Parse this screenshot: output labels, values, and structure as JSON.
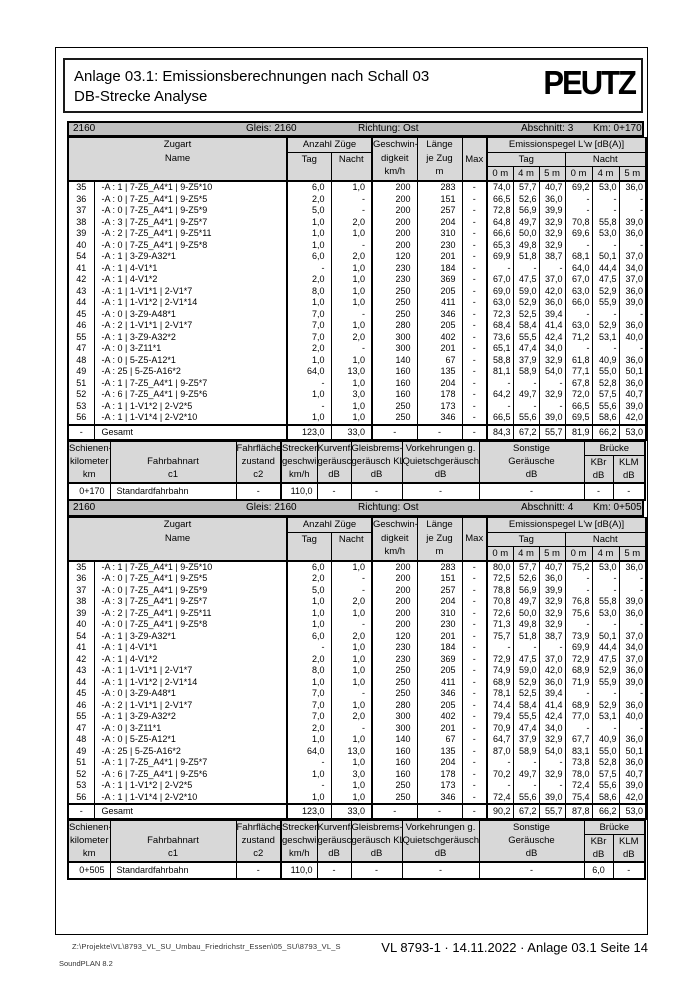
{
  "colors": {
    "bar_bg": "#c0c0c0",
    "header_cell_bg": "#d8d8d8"
  },
  "header": {
    "title_line1": "Anlage 03.1: Emissionsberechnungen nach Schall 03",
    "title_line2": "DB-Strecke Analyse",
    "logo": "PEUTZ"
  },
  "main_header": {
    "zugart": "Zugart",
    "name": "Name",
    "anzahl": "Anzahl Züge",
    "tag": "Tag",
    "nacht": "Nacht",
    "geschw": [
      "Geschwin-",
      "digkeit",
      "km/h"
    ],
    "laenge": [
      "Länge",
      "je Zug",
      "m"
    ],
    "max": "Max",
    "emis": "Emissionspegel L'w [dB(A)]",
    "tag2": "Tag",
    "nacht2": "Nacht",
    "m": [
      "0 m",
      "4 m",
      "5 m",
      "0 m",
      "4 m",
      "5 m"
    ]
  },
  "sub_header": {
    "km": [
      "Schienen-",
      "kilometer",
      "km"
    ],
    "fahrbahnart": [
      "",
      "Fahrbahnart",
      "c1"
    ],
    "zustand": [
      "Fahrflächen-",
      "zustand",
      "c2"
    ],
    "strecken": [
      "Strecken",
      "geschwin",
      "km/h"
    ],
    "kurven": [
      "Kurvenfah",
      "geräusch",
      "dB"
    ],
    "gleisbrems": [
      "Gleisbrems-",
      "geräusch KL",
      "dB"
    ],
    "vorkehrungen": [
      "Vorkehrungen g.",
      "Quietschgeräusche",
      "dB"
    ],
    "sonstige": [
      "Sonstige",
      "Geräusche",
      "dB"
    ],
    "bruecke": "Brücke",
    "kbr": [
      "KBr",
      "dB"
    ],
    "klm": [
      "KLM",
      "dB"
    ]
  },
  "sections": [
    {
      "bar": {
        "track": "2160",
        "gleis": "Gleis: 2160",
        "richtung": "Richtung: Ost",
        "abschnitt": "Abschnitt: 3",
        "km": "Km: 0+170"
      },
      "rows": [
        [
          "35",
          "-A : 1 | 7-Z5_A4*1 | 9-Z5*10",
          "6,0",
          "1,0",
          "200",
          "283",
          "-",
          "74,0",
          "57,7",
          "40,7",
          "69,2",
          "53,0",
          "36,0"
        ],
        [
          "36",
          "-A : 0 | 7-Z5_A4*1 | 9-Z5*5",
          "2,0",
          "-",
          "200",
          "151",
          "-",
          "66,5",
          "52,6",
          "36,0",
          "-",
          "-",
          "-"
        ],
        [
          "37",
          "-A : 0 | 7-Z5_A4*1 | 9-Z5*9",
          "5,0",
          "-",
          "200",
          "257",
          "-",
          "72,8",
          "56,9",
          "39,9",
          "-",
          "-",
          "-"
        ],
        [
          "38",
          "-A : 3 | 7-Z5_A4*1 | 9-Z5*7",
          "1,0",
          "2,0",
          "200",
          "204",
          "-",
          "64,8",
          "49,7",
          "32,9",
          "70,8",
          "55,8",
          "39,0"
        ],
        [
          "39",
          "-A : 2 | 7-Z5_A4*1 | 9-Z5*11",
          "1,0",
          "1,0",
          "200",
          "310",
          "-",
          "66,6",
          "50,0",
          "32,9",
          "69,6",
          "53,0",
          "36,0"
        ],
        [
          "40",
          "-A : 0 | 7-Z5_A4*1 | 9-Z5*8",
          "1,0",
          "-",
          "200",
          "230",
          "-",
          "65,3",
          "49,8",
          "32,9",
          "-",
          "-",
          "-"
        ],
        [
          "54",
          "-A : 1 | 3-Z9-A32*1",
          "6,0",
          "2,0",
          "120",
          "201",
          "-",
          "69,9",
          "51,8",
          "38,7",
          "68,1",
          "50,1",
          "37,0"
        ],
        [
          "41",
          "-A : 1 | 4-V1*1",
          "-",
          "1,0",
          "230",
          "184",
          "-",
          "-",
          "-",
          "-",
          "64,0",
          "44,4",
          "34,0"
        ],
        [
          "42",
          "-A : 1 | 4-V1*2",
          "2,0",
          "1,0",
          "230",
          "369",
          "-",
          "67,0",
          "47,5",
          "37,0",
          "67,0",
          "47,5",
          "37,0"
        ],
        [
          "43",
          "-A : 1 | 1-V1*1 | 2-V1*7",
          "8,0",
          "1,0",
          "250",
          "205",
          "-",
          "69,0",
          "59,0",
          "42,0",
          "63,0",
          "52,9",
          "36,0"
        ],
        [
          "44",
          "-A : 1 | 1-V1*2 | 2-V1*14",
          "1,0",
          "1,0",
          "250",
          "411",
          "-",
          "63,0",
          "52,9",
          "36,0",
          "66,0",
          "55,9",
          "39,0"
        ],
        [
          "45",
          "-A : 0 | 3-Z9-A48*1",
          "7,0",
          "-",
          "250",
          "346",
          "-",
          "72,3",
          "52,5",
          "39,4",
          "-",
          "-",
          "-"
        ],
        [
          "46",
          "-A : 2 | 1-V1*1 | 2-V1*7",
          "7,0",
          "1,0",
          "280",
          "205",
          "-",
          "68,4",
          "58,4",
          "41,4",
          "63,0",
          "52,9",
          "36,0"
        ],
        [
          "55",
          "-A : 1 | 3-Z9-A32*2",
          "7,0",
          "2,0",
          "300",
          "402",
          "-",
          "73,6",
          "55,5",
          "42,4",
          "71,2",
          "53,1",
          "40,0"
        ],
        [
          "47",
          "-A : 0 | 3-Z11*1",
          "2,0",
          "-",
          "300",
          "201",
          "-",
          "65,1",
          "47,4",
          "34,0",
          "-",
          "-",
          "-"
        ],
        [
          "48",
          "-A : 0 | 5-Z5-A12*1",
          "1,0",
          "1,0",
          "140",
          "67",
          "-",
          "58,8",
          "37,9",
          "32,9",
          "61,8",
          "40,9",
          "36,0"
        ],
        [
          "49",
          "-A : 25 | 5-Z5-A16*2",
          "64,0",
          "13,0",
          "160",
          "135",
          "-",
          "81,1",
          "58,9",
          "54,0",
          "77,1",
          "55,0",
          "50,1"
        ],
        [
          "51",
          "-A : 1 | 7-Z5_A4*1 | 9-Z5*7",
          "-",
          "1,0",
          "160",
          "204",
          "-",
          "-",
          "-",
          "-",
          "67,8",
          "52,8",
          "36,0"
        ],
        [
          "52",
          "-A : 6 | 7-Z5_A4*1 | 9-Z5*6",
          "1,0",
          "3,0",
          "160",
          "178",
          "-",
          "64,2",
          "49,7",
          "32,9",
          "72,0",
          "57,5",
          "40,7"
        ],
        [
          "53",
          "-A : 1 | 1-V1*2 | 2-V2*5",
          "-",
          "1,0",
          "250",
          "173",
          "-",
          "-",
          "-",
          "-",
          "66,5",
          "55,6",
          "39,0"
        ],
        [
          "56",
          "-A : 1 | 1-V1*4 | 2-V2*10",
          "1,0",
          "1,0",
          "250",
          "346",
          "-",
          "66,5",
          "55,6",
          "39,0",
          "69,5",
          "58,6",
          "42,0"
        ]
      ],
      "total_rows": [
        [
          "-",
          "Gesamt",
          "123,0",
          "33,0",
          "-",
          "-",
          "-",
          "84,3",
          "67,2",
          "55,7",
          "81,9",
          "66,2",
          "53,0"
        ]
      ],
      "track_rows": [
        [
          "0+170",
          "Standardfahrbahn",
          "-",
          "110,0",
          "-",
          "-",
          "-",
          "-",
          "-",
          "-"
        ]
      ]
    },
    {
      "bar": {
        "track": "2160",
        "gleis": "Gleis: 2160",
        "richtung": "Richtung: Ost",
        "abschnitt": "Abschnitt: 4",
        "km": "Km: 0+505"
      },
      "rows": [
        [
          "35",
          "-A : 1 | 7-Z5_A4*1 | 9-Z5*10",
          "6,0",
          "1,0",
          "200",
          "283",
          "-",
          "80,0",
          "57,7",
          "40,7",
          "75,2",
          "53,0",
          "36,0"
        ],
        [
          "36",
          "-A : 0 | 7-Z5_A4*1 | 9-Z5*5",
          "2,0",
          "-",
          "200",
          "151",
          "-",
          "72,5",
          "52,6",
          "36,0",
          "-",
          "-",
          "-"
        ],
        [
          "37",
          "-A : 0 | 7-Z5_A4*1 | 9-Z5*9",
          "5,0",
          "-",
          "200",
          "257",
          "-",
          "78,8",
          "56,9",
          "39,9",
          "-",
          "-",
          "-"
        ],
        [
          "38",
          "-A : 3 | 7-Z5_A4*1 | 9-Z5*7",
          "1,0",
          "2,0",
          "200",
          "204",
          "-",
          "70,8",
          "49,7",
          "32,9",
          "76,8",
          "55,8",
          "39,0"
        ],
        [
          "39",
          "-A : 2 | 7-Z5_A4*1 | 9-Z5*11",
          "1,0",
          "1,0",
          "200",
          "310",
          "-",
          "72,6",
          "50,0",
          "32,9",
          "75,6",
          "53,0",
          "36,0"
        ],
        [
          "40",
          "-A : 0 | 7-Z5_A4*1 | 9-Z5*8",
          "1,0",
          "-",
          "200",
          "230",
          "-",
          "71,3",
          "49,8",
          "32,9",
          "-",
          "-",
          "-"
        ],
        [
          "54",
          "-A : 1 | 3-Z9-A32*1",
          "6,0",
          "2,0",
          "120",
          "201",
          "-",
          "75,7",
          "51,8",
          "38,7",
          "73,9",
          "50,1",
          "37,0"
        ],
        [
          "41",
          "-A : 1 | 4-V1*1",
          "-",
          "1,0",
          "230",
          "184",
          "-",
          "-",
          "-",
          "-",
          "69,9",
          "44,4",
          "34,0"
        ],
        [
          "42",
          "-A : 1 | 4-V1*2",
          "2,0",
          "1,0",
          "230",
          "369",
          "-",
          "72,9",
          "47,5",
          "37,0",
          "72,9",
          "47,5",
          "37,0"
        ],
        [
          "43",
          "-A : 1 | 1-V1*1 | 2-V1*7",
          "8,0",
          "1,0",
          "250",
          "205",
          "-",
          "74,9",
          "59,0",
          "42,0",
          "68,9",
          "52,9",
          "36,0"
        ],
        [
          "44",
          "-A : 1 | 1-V1*2 | 2-V1*14",
          "1,0",
          "1,0",
          "250",
          "411",
          "-",
          "68,9",
          "52,9",
          "36,0",
          "71,9",
          "55,9",
          "39,0"
        ],
        [
          "45",
          "-A : 0 | 3-Z9-A48*1",
          "7,0",
          "-",
          "250",
          "346",
          "-",
          "78,1",
          "52,5",
          "39,4",
          "-",
          "-",
          "-"
        ],
        [
          "46",
          "-A : 2 | 1-V1*1 | 2-V1*7",
          "7,0",
          "1,0",
          "280",
          "205",
          "-",
          "74,4",
          "58,4",
          "41,4",
          "68,9",
          "52,9",
          "36,0"
        ],
        [
          "55",
          "-A : 1 | 3-Z9-A32*2",
          "7,0",
          "2,0",
          "300",
          "402",
          "-",
          "79,4",
          "55,5",
          "42,4",
          "77,0",
          "53,1",
          "40,0"
        ],
        [
          "47",
          "-A : 0 | 3-Z11*1",
          "2,0",
          "-",
          "300",
          "201",
          "-",
          "70,9",
          "47,4",
          "34,0",
          "-",
          "-",
          "-"
        ],
        [
          "48",
          "-A : 0 | 5-Z5-A12*1",
          "1,0",
          "1,0",
          "140",
          "67",
          "-",
          "64,7",
          "37,9",
          "32,9",
          "67,7",
          "40,9",
          "36,0"
        ],
        [
          "49",
          "-A : 25 | 5-Z5-A16*2",
          "64,0",
          "13,0",
          "160",
          "135",
          "-",
          "87,0",
          "58,9",
          "54,0",
          "83,1",
          "55,0",
          "50,1"
        ],
        [
          "51",
          "-A : 1 | 7-Z5_A4*1 | 9-Z5*7",
          "-",
          "1,0",
          "160",
          "204",
          "-",
          "-",
          "-",
          "-",
          "73,8",
          "52,8",
          "36,0"
        ],
        [
          "52",
          "-A : 6 | 7-Z5_A4*1 | 9-Z5*6",
          "1,0",
          "3,0",
          "160",
          "178",
          "-",
          "70,2",
          "49,7",
          "32,9",
          "78,0",
          "57,5",
          "40,7"
        ],
        [
          "53",
          "-A : 1 | 1-V1*2 | 2-V2*5",
          "-",
          "1,0",
          "250",
          "173",
          "-",
          "-",
          "-",
          "-",
          "72,4",
          "55,6",
          "39,0"
        ],
        [
          "56",
          "-A : 1 | 1-V1*4 | 2-V2*10",
          "1,0",
          "1,0",
          "250",
          "346",
          "-",
          "72,4",
          "55,6",
          "39,0",
          "75,4",
          "58,6",
          "42,0"
        ]
      ],
      "total_rows": [
        [
          "-",
          "Gesamt",
          "123,0",
          "33,0",
          "-",
          "-",
          "-",
          "90,2",
          "67,2",
          "55,7",
          "87,8",
          "66,2",
          "53,0"
        ]
      ],
      "track_rows": [
        [
          "0+505",
          "Standardfahrbahn",
          "-",
          "110,0",
          "-",
          "-",
          "-",
          "-",
          "6,0",
          "-"
        ]
      ]
    }
  ],
  "footer": {
    "path": "Z:\\Projekte\\VL\\8793_VL_SU_Umbau_Friedrichstr_Essen\\05_SU\\8793_VL_S",
    "app": "SoundPLAN 8.2",
    "reference": "VL 8793-1 · 14.11.2022 · Anlage 03.1 Seite 14"
  }
}
